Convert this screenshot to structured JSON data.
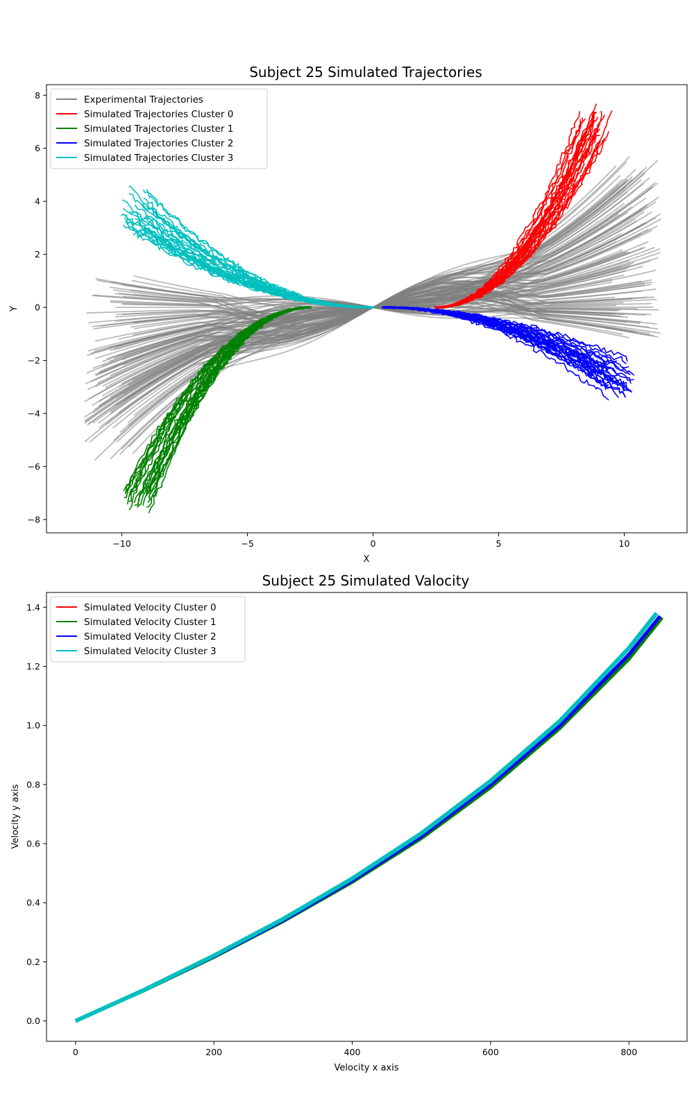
{
  "chart_data": [
    {
      "type": "line",
      "title": "Subject 25 Simulated Trajectories",
      "xlabel": "X",
      "ylabel": "Y",
      "xlim": [
        -13.0,
        12.5
      ],
      "ylim": [
        -8.5,
        8.4
      ],
      "xticks": [
        -10,
        -5,
        0,
        5,
        10
      ],
      "xtick_labels": [
        "−10",
        "−5",
        "0",
        "5",
        "10"
      ],
      "yticks": [
        -8,
        -6,
        -4,
        -2,
        0,
        2,
        4,
        6,
        8
      ],
      "ytick_labels": [
        "−8",
        "−6",
        "−4",
        "−2",
        "0",
        "2",
        "4",
        "6",
        "8"
      ],
      "grid": false,
      "legend": "top-left",
      "series": [
        {
          "name": "Experimental Trajectories",
          "color": "#808080",
          "count": 240,
          "x_end_range": [
            9.5,
            11.5
          ],
          "y_end_range": [
            -1.2,
            5.8
          ],
          "mirrored": true
        },
        {
          "name": "Simulated Trajectories Cluster 0",
          "color": "#ff0000",
          "count": 26,
          "x_end": [
            8.0,
            9.6
          ],
          "y_end": [
            6.2,
            7.6
          ],
          "x_start": 2.5
        },
        {
          "name": "Simulated Trajectories Cluster 1",
          "color": "#008000",
          "count": 26,
          "x_end": [
            -10.0,
            -8.8
          ],
          "y_end": [
            -7.7,
            -6.8
          ],
          "x_start": -2.5
        },
        {
          "name": "Simulated Trajectories Cluster 2",
          "color": "#0000ff",
          "count": 26,
          "x_end": [
            9.3,
            10.4
          ],
          "y_end": [
            -3.5,
            -1.8
          ],
          "x_start": 0.4
        },
        {
          "name": "Simulated Trajectories Cluster 3",
          "color": "#00bfbf",
          "count": 26,
          "x_end": [
            -10.0,
            -8.9
          ],
          "y_end": [
            2.8,
            4.6
          ],
          "x_start": 0.0
        }
      ]
    },
    {
      "type": "line",
      "title": "Subject 25 Simulated Valocity",
      "xlabel": "Velocity x axis",
      "ylabel": "Velocity y axis",
      "xlim": [
        -42,
        884
      ],
      "ylim": [
        -0.069,
        1.45
      ],
      "xticks": [
        0,
        200,
        400,
        600,
        800
      ],
      "xtick_labels": [
        "0",
        "200",
        "400",
        "600",
        "800"
      ],
      "yticks": [
        0.0,
        0.2,
        0.4,
        0.6,
        0.8,
        1.0,
        1.2,
        1.4
      ],
      "ytick_labels": [
        "0.0",
        "0.2",
        "0.4",
        "0.6",
        "0.8",
        "1.0",
        "1.2",
        "1.4"
      ],
      "grid": false,
      "legend": "top-left",
      "series": [
        {
          "name": "Simulated Velocity Cluster 0",
          "color": "#ff0000",
          "x": [
            0,
            100,
            200,
            300,
            400,
            500,
            600,
            700,
            800,
            845
          ],
          "y": [
            0,
            0.105,
            0.218,
            0.34,
            0.475,
            0.625,
            0.8,
            1.0,
            1.24,
            1.37
          ]
        },
        {
          "name": "Simulated Velocity Cluster 1",
          "color": "#008000",
          "x": [
            0,
            100,
            200,
            300,
            400,
            500,
            600,
            700,
            800,
            848
          ],
          "y": [
            0,
            0.104,
            0.216,
            0.337,
            0.47,
            0.618,
            0.79,
            0.99,
            1.225,
            1.365
          ]
        },
        {
          "name": "Simulated Velocity Cluster 2",
          "color": "#0000ff",
          "x": [
            0,
            100,
            200,
            300,
            400,
            500,
            600,
            700,
            800,
            845
          ],
          "y": [
            0,
            0.105,
            0.218,
            0.34,
            0.475,
            0.625,
            0.8,
            1.0,
            1.24,
            1.37
          ]
        },
        {
          "name": "Simulated Velocity Cluster 3",
          "color": "#00bfbf",
          "x": [
            0,
            100,
            200,
            300,
            400,
            500,
            600,
            700,
            800,
            840
          ],
          "y": [
            0,
            0.106,
            0.221,
            0.345,
            0.482,
            0.635,
            0.812,
            1.015,
            1.262,
            1.38
          ]
        }
      ]
    }
  ]
}
